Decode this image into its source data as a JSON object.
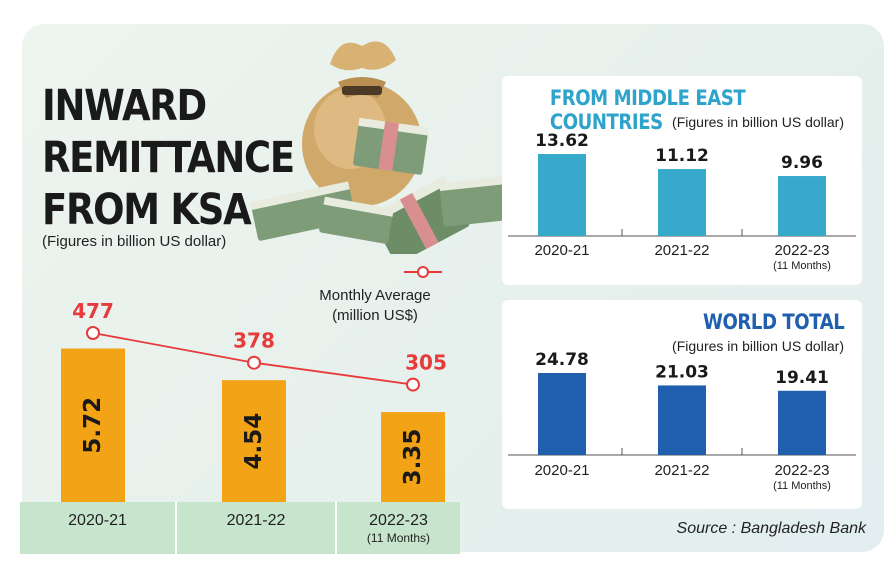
{
  "title_lines": [
    "INWARD",
    "REMITTANCE",
    "FROM KSA"
  ],
  "main_note": "(Figures in billion US dollar)",
  "line_legend_lines": [
    "Monthly Average",
    "(million US$)"
  ],
  "source": "Source : Bangladesh Bank",
  "colors": {
    "ksa_bar": "#f2a316",
    "line": "#e83a3a",
    "middle_east_bar": "#37aacb",
    "world_bar": "#1f5fae",
    "x_band": "#c7e5cc"
  },
  "chart_data": [
    {
      "type": "bar",
      "title": "INWARD REMITTANCE FROM KSA",
      "subtitle": "(Figures in billion US dollar)",
      "categories": [
        "2020-21",
        "2021-22",
        "2022-23"
      ],
      "category_notes": [
        "",
        "",
        "(11 Months)"
      ],
      "series": [
        {
          "name": "",
          "values": [
            5.72,
            4.54,
            3.35
          ]
        },
        {
          "name": "Monthly Average (million US$)",
          "type": "line",
          "values": [
            477,
            378,
            305
          ]
        }
      ]
    },
    {
      "type": "bar",
      "title": "FROM MIDDLE EAST COUNTRIES",
      "subtitle": "(Figures in billion US dollar)",
      "categories": [
        "2020-21",
        "2021-22",
        "2022-23"
      ],
      "category_notes": [
        "",
        "",
        "(11 Months)"
      ],
      "values": [
        13.62,
        11.12,
        9.96
      ]
    },
    {
      "type": "bar",
      "title": "WORLD TOTAL",
      "subtitle": "(Figures in billion US dollar)",
      "categories": [
        "2020-21",
        "2021-22",
        "2022-23"
      ],
      "category_notes": [
        "",
        "",
        "(11 Months)"
      ],
      "values": [
        24.78,
        21.03,
        19.41
      ]
    }
  ]
}
